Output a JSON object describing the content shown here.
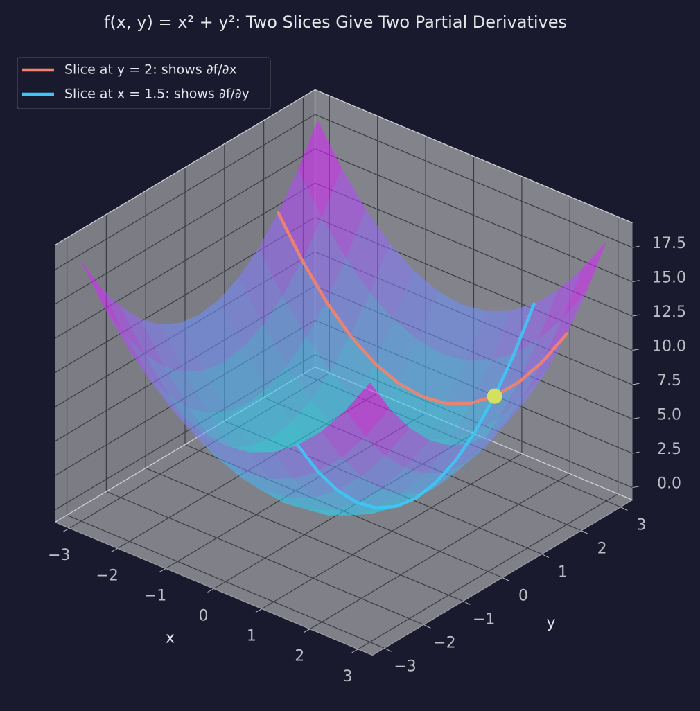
{
  "chart_data": {
    "type": "surface3d",
    "title": "f(x, y) = x² + y²: Two Slices Give Two Partial Derivatives",
    "xlabel": "x",
    "ylabel": "y",
    "xlim": [
      -3.3,
      3.3
    ],
    "ylim": [
      -3.3,
      3.3
    ],
    "zlim": [
      -0.9,
      19.3
    ],
    "xticks": [
      {
        "value": -3,
        "label": "−3"
      },
      {
        "value": -2,
        "label": "−2"
      },
      {
        "value": -1,
        "label": "−1"
      },
      0,
      1,
      2,
      3
    ],
    "yticks": [
      {
        "value": -3,
        "label": "−3"
      },
      {
        "value": -2,
        "label": "−2"
      },
      {
        "value": -1,
        "label": "−1"
      },
      0,
      1,
      2,
      3
    ],
    "zticks": [
      {
        "value": 0,
        "label": "0.0"
      },
      {
        "value": 2.5,
        "label": "2.5"
      },
      {
        "value": 5,
        "label": "5.0"
      },
      {
        "value": 7.5,
        "label": "7.5"
      },
      {
        "value": 10,
        "label": "10.0"
      },
      {
        "value": 12.5,
        "label": "12.5"
      },
      {
        "value": 15,
        "label": "15.0"
      },
      {
        "value": 17.5,
        "label": "17.5"
      }
    ],
    "grid": true,
    "legend": "upper left",
    "surface": {
      "x": [
        -3,
        -2.5,
        -2,
        -1.5,
        -1,
        -0.5,
        0,
        0.5,
        1,
        1.5,
        2,
        2.5,
        3
      ],
      "y": [
        -3,
        -2.5,
        -2,
        -1.5,
        -1,
        -0.5,
        0,
        0.5,
        1,
        1.5,
        2,
        2.5,
        3
      ],
      "z": [
        [
          18,
          15.25,
          13,
          11.25,
          10,
          9.25,
          9,
          9.25,
          10,
          11.25,
          13,
          15.25,
          18
        ],
        [
          15.25,
          12.5,
          10.25,
          8.5,
          7.25,
          6.5,
          6.25,
          6.5,
          7.25,
          8.5,
          10.25,
          12.5,
          15.25
        ],
        [
          13,
          10.25,
          8,
          6.25,
          5,
          4.25,
          4,
          4.25,
          5,
          6.25,
          8,
          10.25,
          13
        ],
        [
          11.25,
          8.5,
          6.25,
          4.5,
          3.25,
          2.5,
          2.25,
          2.5,
          3.25,
          4.5,
          6.25,
          8.5,
          11.25
        ],
        [
          10,
          7.25,
          5,
          3.25,
          2,
          1.25,
          1,
          1.25,
          2,
          3.25,
          5,
          7.25,
          10
        ],
        [
          9.25,
          6.5,
          4.25,
          2.5,
          1.25,
          0.5,
          0.25,
          0.5,
          1.25,
          2.5,
          4.25,
          6.5,
          9.25
        ],
        [
          9,
          6.25,
          4,
          2.25,
          1,
          0.25,
          0,
          0.25,
          1,
          2.25,
          4,
          6.25,
          9
        ],
        [
          9.25,
          6.5,
          4.25,
          2.5,
          1.25,
          0.5,
          0.25,
          0.5,
          1.25,
          2.5,
          4.25,
          6.5,
          9.25
        ],
        [
          10,
          7.25,
          5,
          3.25,
          2,
          1.25,
          1,
          1.25,
          2,
          3.25,
          5,
          7.25,
          10
        ],
        [
          11.25,
          8.5,
          6.25,
          4.5,
          3.25,
          2.5,
          2.25,
          2.5,
          3.25,
          4.5,
          6.25,
          8.5,
          11.25
        ],
        [
          13,
          10.25,
          8,
          6.25,
          5,
          4.25,
          4,
          4.25,
          5,
          6.25,
          8,
          10.25,
          13
        ],
        [
          15.25,
          12.5,
          10.25,
          8.5,
          7.25,
          6.5,
          6.25,
          6.5,
          7.25,
          8.5,
          10.25,
          12.5,
          15.25
        ],
        [
          18,
          15.25,
          13,
          11.25,
          10,
          9.25,
          9,
          9.25,
          10,
          11.25,
          13,
          15.25,
          18
        ]
      ]
    },
    "series": [
      {
        "name": "Slice at y = 2: shows ∂f/∂x",
        "color": "#f5826a",
        "x": [
          -3,
          -2.5,
          -2,
          -1.5,
          -1,
          -0.5,
          0,
          0.5,
          1,
          1.5,
          2,
          2.5,
          3
        ],
        "y": [
          2,
          2,
          2,
          2,
          2,
          2,
          2,
          2,
          2,
          2,
          2,
          2,
          2
        ],
        "z": [
          13,
          10.25,
          8,
          6.25,
          5,
          4.25,
          4,
          4.25,
          5,
          6.25,
          8,
          10.25,
          13
        ]
      },
      {
        "name": "Slice at x = 1.5: shows ∂f/∂y",
        "color": "#3ec6f7",
        "x": [
          1.5,
          1.5,
          1.5,
          1.5,
          1.5,
          1.5,
          1.5,
          1.5,
          1.5,
          1.5,
          1.5,
          1.5,
          1.5
        ],
        "y": [
          -3,
          -2.5,
          -2,
          -1.5,
          -1,
          -0.5,
          0,
          0.5,
          1,
          1.5,
          2,
          2.5,
          3
        ],
        "z": [
          11.25,
          8.5,
          6.25,
          4.5,
          3.25,
          2.5,
          2.25,
          2.5,
          3.25,
          4.5,
          6.25,
          8.5,
          11.25
        ]
      }
    ],
    "point": {
      "x": 1.5,
      "y": 2,
      "z": 6.25,
      "color": "#d4e05e"
    }
  }
}
